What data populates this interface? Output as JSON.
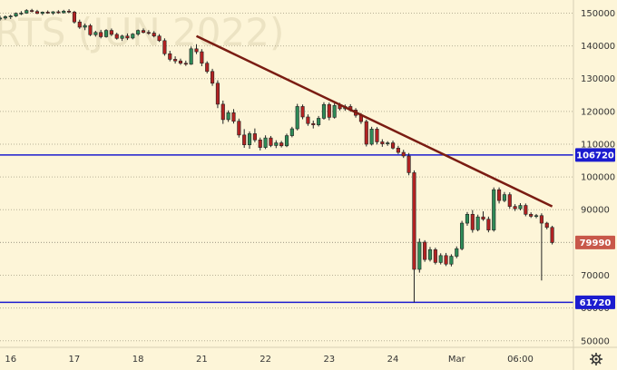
{
  "chart_data": {
    "type": "candlestick",
    "watermark": "RTS (JUN 2022)",
    "y_axis": {
      "ticks": [
        150000,
        140000,
        130000,
        120000,
        110000,
        100000,
        90000,
        80000,
        70000,
        60000,
        50000
      ],
      "tick_labels": [
        "150000",
        "140000",
        "130000",
        "120000",
        "110000",
        "100000",
        "90000",
        "80000",
        "70000",
        "60000",
        "50000"
      ],
      "range": [
        48000,
        154000
      ]
    },
    "x_axis": {
      "tick_labels": [
        "16",
        "17",
        "18",
        "21",
        "22",
        "23",
        "24",
        "Mar",
        "06:00"
      ],
      "tick_index": [
        0,
        12,
        24,
        36,
        48,
        60,
        72,
        84,
        96
      ],
      "range": [
        -2,
        106
      ]
    },
    "levels": [
      {
        "value": 106720,
        "label": "106720",
        "color": "#1c1ccf"
      },
      {
        "value": 61720,
        "label": "61720",
        "color": "#1c1ccf"
      }
    ],
    "last_price": {
      "value": 79990,
      "label": "79990",
      "color": "#c8584a"
    },
    "trendline": {
      "from": [
        35,
        143000
      ],
      "to": [
        102,
        91000
      ],
      "color": "#7a1c12"
    },
    "colors": {
      "up": "#2e8b57",
      "down": "#b22222",
      "background": "#fdf5d8"
    },
    "candles": [
      [
        -2,
        148200,
        149200,
        147700,
        148500
      ],
      [
        -1,
        148500,
        149300,
        148000,
        148900
      ],
      [
        0,
        148900,
        149500,
        148200,
        149100
      ],
      [
        1,
        149100,
        150200,
        148800,
        149900
      ],
      [
        2,
        149900,
        150600,
        149400,
        150000
      ],
      [
        3,
        150000,
        151200,
        149800,
        150800
      ],
      [
        4,
        150800,
        151300,
        150200,
        150500
      ],
      [
        5,
        150500,
        151000,
        149700,
        149900
      ],
      [
        6,
        149900,
        150500,
        149400,
        150300
      ],
      [
        7,
        150300,
        150800,
        149800,
        150000
      ],
      [
        8,
        150000,
        150600,
        149500,
        150400
      ],
      [
        9,
        150400,
        150900,
        149800,
        150100
      ],
      [
        10,
        150100,
        151000,
        149900,
        150600
      ],
      [
        11,
        150600,
        151200,
        150000,
        150300
      ],
      [
        12,
        150300,
        150700,
        146800,
        147300
      ],
      [
        13,
        147300,
        148000,
        145200,
        145700
      ],
      [
        14,
        145700,
        146800,
        144800,
        146200
      ],
      [
        15,
        146200,
        146700,
        143000,
        143400
      ],
      [
        16,
        143400,
        144600,
        142800,
        144100
      ],
      [
        17,
        144100,
        144900,
        142300,
        142800
      ],
      [
        18,
        142800,
        145100,
        142500,
        144700
      ],
      [
        19,
        144700,
        145300,
        143000,
        143500
      ],
      [
        20,
        143500,
        144000,
        141900,
        142300
      ],
      [
        21,
        142300,
        143400,
        141500,
        143000
      ],
      [
        22,
        143000,
        143800,
        141800,
        142400
      ],
      [
        23,
        142400,
        143900,
        142000,
        143600
      ],
      [
        24,
        143600,
        145000,
        143100,
        144700
      ],
      [
        25,
        144700,
        145300,
        143800,
        144100
      ],
      [
        26,
        144100,
        144800,
        143400,
        143900
      ],
      [
        27,
        143900,
        144500,
        142600,
        143000
      ],
      [
        28,
        143000,
        143600,
        141200,
        141600
      ],
      [
        29,
        141600,
        142300,
        137000,
        137600
      ],
      [
        30,
        137600,
        138500,
        135300,
        135900
      ],
      [
        31,
        135900,
        136800,
        134600,
        135400
      ],
      [
        32,
        135400,
        136100,
        134200,
        134700
      ],
      [
        33,
        134700,
        135500,
        133900,
        134400
      ],
      [
        34,
        134400,
        139800,
        134200,
        139100
      ],
      [
        35,
        139100,
        140500,
        137500,
        138200
      ],
      [
        36,
        138200,
        139000,
        133800,
        134700
      ],
      [
        37,
        134700,
        135300,
        131600,
        132200
      ],
      [
        38,
        132200,
        133000,
        127800,
        128600
      ],
      [
        39,
        128600,
        129500,
        121000,
        122200
      ],
      [
        40,
        122200,
        123300,
        116200,
        117500
      ],
      [
        41,
        117500,
        120300,
        116800,
        119600
      ],
      [
        42,
        119600,
        120700,
        116300,
        117000
      ],
      [
        43,
        117000,
        117800,
        112000,
        112800
      ],
      [
        44,
        112800,
        114600,
        108900,
        109800
      ],
      [
        45,
        109800,
        113900,
        108600,
        113200
      ],
      [
        46,
        113200,
        114800,
        110600,
        111300
      ],
      [
        47,
        111300,
        112000,
        108100,
        109000
      ],
      [
        48,
        109000,
        112700,
        108500,
        111900
      ],
      [
        49,
        111900,
        112500,
        109100,
        109600
      ],
      [
        50,
        109600,
        111200,
        108800,
        110400
      ],
      [
        51,
        110400,
        111000,
        109000,
        109500
      ],
      [
        52,
        109500,
        113200,
        109100,
        112600
      ],
      [
        53,
        112600,
        115300,
        112100,
        114700
      ],
      [
        54,
        114700,
        122300,
        114200,
        121500
      ],
      [
        55,
        121500,
        122100,
        117600,
        118300
      ],
      [
        56,
        118300,
        119100,
        115600,
        116300
      ],
      [
        57,
        116300,
        117200,
        114800,
        115900
      ],
      [
        58,
        115900,
        118600,
        115400,
        117900
      ],
      [
        59,
        117900,
        122800,
        117500,
        122100
      ],
      [
        60,
        122100,
        122700,
        117300,
        118200
      ],
      [
        61,
        118200,
        122500,
        117800,
        121800
      ],
      [
        62,
        121800,
        122600,
        120300,
        120800
      ],
      [
        63,
        120800,
        122100,
        120200,
        121500
      ],
      [
        64,
        121500,
        122200,
        119900,
        120400
      ],
      [
        65,
        120400,
        121000,
        118100,
        118800
      ],
      [
        66,
        118800,
        119500,
        116200,
        116900
      ],
      [
        67,
        116900,
        117500,
        109300,
        110000
      ],
      [
        68,
        110000,
        115300,
        109600,
        114600
      ],
      [
        69,
        114600,
        115200,
        109900,
        110700
      ],
      [
        70,
        110700,
        111500,
        109200,
        110100
      ],
      [
        71,
        110100,
        110900,
        109500,
        110400
      ],
      [
        72,
        110400,
        111100,
        108400,
        108800
      ],
      [
        73,
        108800,
        109500,
        107000,
        107500
      ],
      [
        74,
        107500,
        108300,
        105800,
        106400
      ],
      [
        75,
        106400,
        107300,
        100500,
        101300
      ],
      [
        76,
        101300,
        102000,
        61720,
        71800
      ],
      [
        77,
        71800,
        81200,
        70800,
        80100
      ],
      [
        78,
        80100,
        80700,
        74100,
        74800
      ],
      [
        79,
        74800,
        78600,
        74200,
        77800
      ],
      [
        80,
        77800,
        78400,
        73300,
        73900
      ],
      [
        81,
        73900,
        76700,
        73300,
        76000
      ],
      [
        82,
        76000,
        76800,
        72800,
        73400
      ],
      [
        83,
        73400,
        76400,
        72700,
        75800
      ],
      [
        84,
        75800,
        78800,
        75200,
        78100
      ],
      [
        85,
        78100,
        86600,
        77600,
        85900
      ],
      [
        86,
        85900,
        89300,
        85100,
        88600
      ],
      [
        87,
        88600,
        89900,
        83000,
        83900
      ],
      [
        88,
        83900,
        88500,
        83400,
        87800
      ],
      [
        89,
        87800,
        89500,
        86600,
        87100
      ],
      [
        90,
        87100,
        87900,
        83100,
        83800
      ],
      [
        91,
        83800,
        96800,
        83300,
        96100
      ],
      [
        92,
        96100,
        96800,
        91900,
        92800
      ],
      [
        93,
        92800,
        95400,
        92300,
        94600
      ],
      [
        94,
        94600,
        95300,
        90300,
        91000
      ],
      [
        95,
        91000,
        91700,
        89600,
        90300
      ],
      [
        96,
        90300,
        92000,
        89800,
        91300
      ],
      [
        97,
        91300,
        91900,
        88000,
        88600
      ],
      [
        98,
        88600,
        89200,
        87500,
        88000
      ],
      [
        99,
        88000,
        88700,
        87400,
        88200
      ],
      [
        100,
        88200,
        88900,
        68400,
        85900
      ],
      [
        101,
        85900,
        86300,
        84000,
        84600
      ],
      [
        102,
        84600,
        85100,
        79400,
        79990
      ]
    ]
  }
}
